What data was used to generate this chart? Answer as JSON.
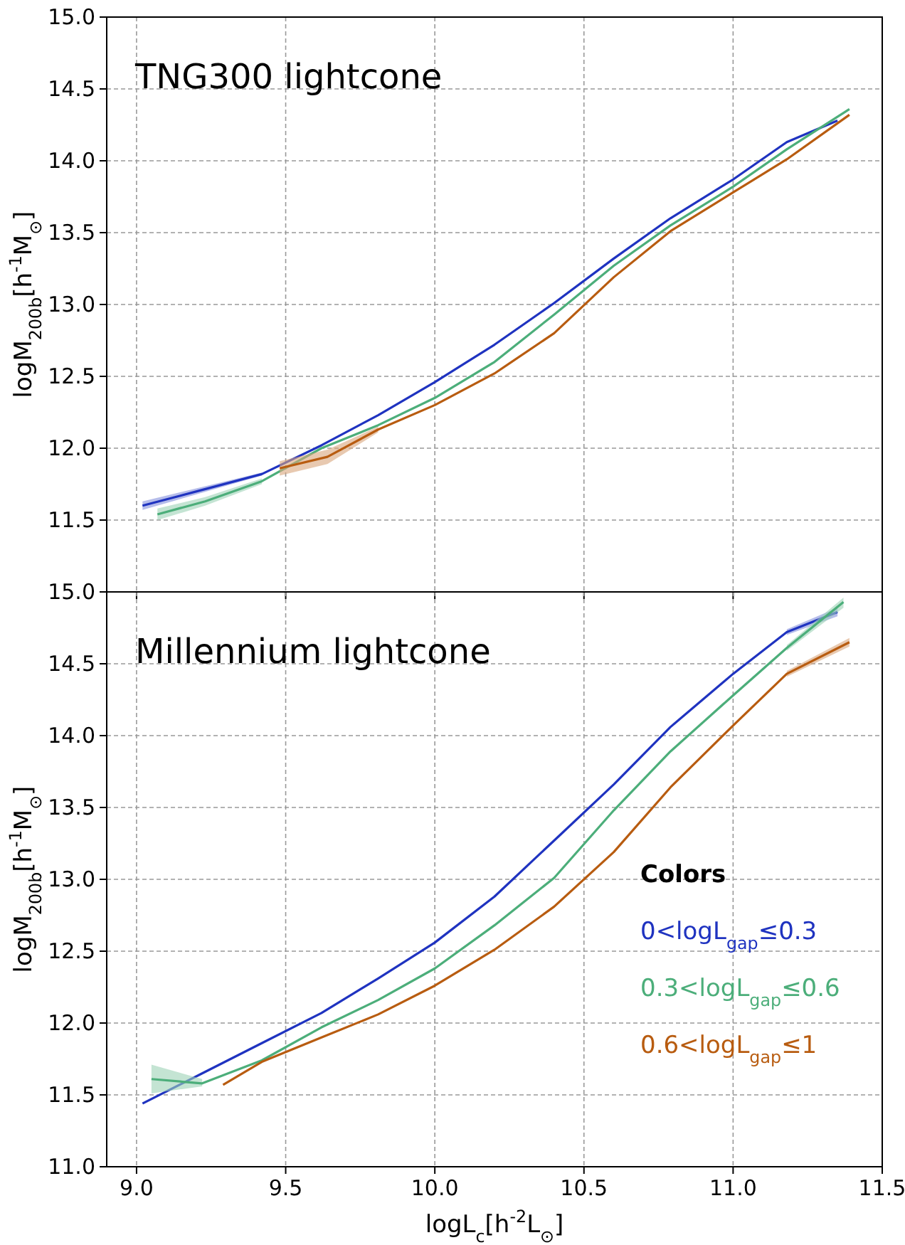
{
  "chart_data": [
    {
      "type": "line",
      "title": "TNG300 lightcone",
      "ylabel": "logM$_{200b}$[h$^{-1}$M$_{⊙}$]",
      "xlim": [
        8.9,
        11.5
      ],
      "xticks": [
        9,
        9.5,
        10,
        10.5,
        11,
        11.5
      ],
      "ylim": [
        11,
        15
      ],
      "yticks": [
        {
          "value": 11,
          "label": null
        },
        {
          "value": 11.5,
          "label": "11.5"
        },
        {
          "value": 12,
          "label": "12.0"
        },
        {
          "value": 12.5,
          "label": "12.5"
        },
        {
          "value": 13,
          "label": "13.0"
        },
        {
          "value": 13.5,
          "label": "13.5"
        },
        {
          "value": 14,
          "label": "14.0"
        },
        {
          "value": 14.5,
          "label": "14.5"
        },
        {
          "value": 15,
          "label": "15.0"
        }
      ],
      "tick_labels": "y",
      "grid": true,
      "legend": false,
      "line_style": "solid",
      "marker": "none",
      "series": [
        {
          "color": "#1f33c0",
          "x": [
            9.02,
            9.22,
            9.42,
            9.62,
            9.81,
            10.0,
            10.2,
            10.4,
            10.6,
            10.79,
            11.0,
            11.18,
            11.35
          ],
          "values": [
            11.6,
            11.71,
            11.82,
            12.02,
            12.23,
            12.46,
            12.72,
            13.01,
            13.32,
            13.6,
            13.87,
            14.13,
            14.28
          ],
          "lower": [
            11.57,
            11.69,
            11.81,
            null,
            null,
            null,
            null,
            null,
            null,
            null,
            null,
            null,
            null
          ],
          "upper": [
            11.63,
            11.73,
            11.83,
            null,
            null,
            null,
            null,
            null,
            null,
            null,
            null,
            null,
            null
          ]
        },
        {
          "color": "#4cae7a",
          "x": [
            9.07,
            9.23,
            9.42,
            9.62,
            9.81,
            10.0,
            10.2,
            10.4,
            10.6,
            10.79,
            11.0,
            11.18,
            11.39
          ],
          "values": [
            11.54,
            11.63,
            11.77,
            12.0,
            12.16,
            12.35,
            12.6,
            12.93,
            13.27,
            13.55,
            13.82,
            14.08,
            14.36
          ],
          "lower": [
            11.5,
            11.6,
            11.75,
            null,
            null,
            null,
            null,
            null,
            null,
            null,
            null,
            null,
            null
          ],
          "upper": [
            11.58,
            11.66,
            11.79,
            null,
            null,
            null,
            null,
            null,
            null,
            null,
            null,
            null,
            null
          ]
        },
        {
          "color": "#b85c10",
          "x": [
            9.48,
            9.64,
            9.81,
            10.0,
            10.2,
            10.4,
            10.6,
            10.79,
            11.0,
            11.18,
            11.39
          ],
          "values": [
            11.86,
            11.94,
            12.13,
            12.3,
            12.52,
            12.8,
            13.19,
            13.51,
            13.78,
            14.01,
            14.32
          ],
          "lower": [
            11.81,
            11.89,
            12.11,
            null,
            null,
            null,
            null,
            null,
            null,
            null,
            null
          ],
          "upper": [
            11.91,
            11.99,
            12.15,
            null,
            null,
            null,
            null,
            null,
            null,
            null,
            null
          ]
        }
      ]
    },
    {
      "type": "line",
      "title": "Millennium lightcone",
      "xlabel": "logL$_{c}$[h$^{-2}$L$_{⊙}$]",
      "ylabel": "logM$_{200b}$[h$^{-1}$M$_{⊙}$]",
      "legend_title": "Colors",
      "xlim": [
        8.9,
        11.5
      ],
      "xticks": [
        {
          "value": 9,
          "label": "9.0"
        },
        {
          "value": 9.5,
          "label": "9.5"
        },
        {
          "value": 10,
          "label": "10.0"
        },
        {
          "value": 10.5,
          "label": "10.5"
        },
        {
          "value": 11,
          "label": "11.0"
        },
        {
          "value": 11.5,
          "label": "11.5"
        }
      ],
      "ylim": [
        11,
        15
      ],
      "yticks": [
        {
          "value": 11,
          "label": "11.0"
        },
        {
          "value": 11.5,
          "label": "11.5"
        },
        {
          "value": 12,
          "label": "12.0"
        },
        {
          "value": 12.5,
          "label": "12.5"
        },
        {
          "value": 13,
          "label": "13.0"
        },
        {
          "value": 13.5,
          "label": "13.5"
        },
        {
          "value": 14,
          "label": "14.0"
        },
        {
          "value": 14.5,
          "label": "14.5"
        },
        {
          "value": 15,
          "label": "15.0"
        }
      ],
      "grid": true,
      "legend": "right",
      "line_style": "solid",
      "marker": "none",
      "series": [
        {
          "name": "0<logL$_{gap}$≤0.3",
          "color": "#1f33c0",
          "x": [
            9.02,
            9.22,
            9.42,
            9.62,
            9.81,
            10.0,
            10.2,
            10.4,
            10.6,
            10.79,
            11.0,
            11.18,
            11.35
          ],
          "values": [
            11.44,
            11.65,
            11.86,
            12.07,
            12.31,
            12.56,
            12.88,
            13.27,
            13.66,
            14.06,
            14.43,
            14.72,
            14.86
          ],
          "lower": [
            null,
            null,
            null,
            null,
            null,
            null,
            null,
            null,
            null,
            null,
            null,
            14.7,
            14.83
          ],
          "upper": [
            null,
            null,
            null,
            null,
            null,
            null,
            null,
            null,
            null,
            null,
            null,
            14.74,
            14.89
          ]
        },
        {
          "name": "0.3<logL$_{gap}$≤0.6",
          "color": "#4cae7a",
          "x": [
            9.05,
            9.22,
            9.42,
            9.62,
            9.81,
            10.0,
            10.2,
            10.4,
            10.6,
            10.79,
            11.0,
            11.18,
            11.37
          ],
          "values": [
            11.61,
            11.58,
            11.74,
            11.97,
            12.16,
            12.38,
            12.68,
            13.01,
            13.48,
            13.89,
            14.28,
            14.61,
            14.93
          ],
          "lower": [
            11.51,
            11.56,
            null,
            null,
            null,
            null,
            null,
            null,
            null,
            null,
            null,
            14.59,
            14.89
          ],
          "upper": [
            11.71,
            11.61,
            null,
            null,
            null,
            null,
            null,
            null,
            null,
            null,
            null,
            14.63,
            14.96
          ]
        },
        {
          "name": "0.6<logL$_{gap}$≤1",
          "color": "#b85c10",
          "x": [
            9.29,
            9.42,
            9.62,
            9.81,
            10.0,
            10.2,
            10.4,
            10.6,
            10.79,
            11.0,
            11.18,
            11.39
          ],
          "values": [
            11.57,
            11.73,
            11.9,
            12.06,
            12.26,
            12.51,
            12.81,
            13.19,
            13.64,
            14.07,
            14.43,
            14.65
          ],
          "lower": [
            null,
            null,
            null,
            null,
            null,
            null,
            null,
            null,
            null,
            null,
            14.41,
            14.62
          ],
          "upper": [
            null,
            null,
            null,
            null,
            null,
            null,
            null,
            null,
            null,
            null,
            14.45,
            14.68
          ]
        }
      ]
    }
  ]
}
